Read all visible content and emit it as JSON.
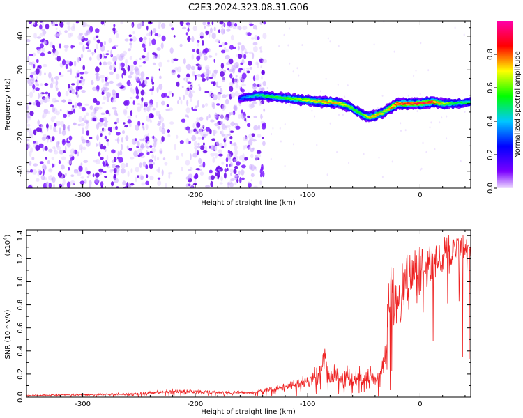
{
  "title": "C2E3.2024.323.08.31.G06",
  "chart_data": [
    {
      "type": "heatmap",
      "xlabel": "Height of straight line (km)",
      "ylabel": "Frequency (Hz)",
      "xlim": [
        -350,
        45
      ],
      "ylim": [
        -50,
        49
      ],
      "xticks": [
        -300,
        -200,
        -100,
        0
      ],
      "xtick_labels": [
        "-300",
        "-200",
        "-100",
        "0"
      ],
      "yticks": [
        -40,
        -20,
        0,
        20,
        40
      ],
      "ytick_labels": [
        "-40",
        "-20",
        "0",
        "20",
        "40"
      ],
      "colorbar": {
        "label": "Normalized spectral amplitude",
        "range": [
          0,
          1
        ],
        "ticks": [
          0.0,
          0.2,
          0.4,
          0.6,
          0.8
        ],
        "tick_labels": [
          "0.0",
          "0.2",
          "0.4",
          "0.6",
          "0.8"
        ],
        "colormap": [
          "#eedcff",
          "#7b00ff",
          "#0000ff",
          "#00c8ff",
          "#00ff00",
          "#ffff00",
          "#ff0000",
          "#ff00aa"
        ]
      },
      "noise_region": {
        "x_range": [
          -350,
          -150
        ],
        "amplitude_range": [
          0.0,
          0.1
        ]
      },
      "signal_trace": {
        "height_km": [
          -160,
          -145,
          -130,
          -115,
          -100,
          -90,
          -80,
          -70,
          -60,
          -55,
          -50,
          -45,
          -40,
          -35,
          -30,
          -25,
          -20,
          -10,
          0,
          10,
          20,
          30,
          45
        ],
        "frequency_hz": [
          3,
          5,
          4,
          3,
          2,
          1,
          1,
          0,
          -3,
          -5,
          -7,
          -8,
          -7,
          -6,
          -4,
          -2,
          0,
          0,
          0,
          1,
          0,
          0,
          1
        ],
        "amplitude": [
          0.3,
          0.5,
          0.55,
          0.6,
          0.7,
          0.75,
          0.8,
          0.7,
          0.6,
          0.55,
          0.6,
          0.75,
          0.8,
          0.75,
          0.7,
          0.8,
          0.85,
          0.9,
          0.95,
          0.9,
          0.7,
          0.55,
          0.5
        ]
      }
    },
    {
      "type": "line",
      "xlabel": "Height of straight line (km)",
      "ylabel": "SNR (10 * v/v)",
      "y_multiplier": "(x10",
      "y_multiplier_exp": "4",
      "y_multiplier_close": ")",
      "xlim": [
        -350,
        45
      ],
      "ylim": [
        0,
        1.45
      ],
      "xticks": [
        -300,
        -200,
        -100,
        0
      ],
      "xtick_labels": [
        "-300",
        "-200",
        "-100",
        "0"
      ],
      "yticks": [
        0.0,
        0.2,
        0.4,
        0.6,
        0.8,
        1.0,
        1.2,
        1.4
      ],
      "ytick_labels": [
        "0.0",
        "0.2",
        "0.4",
        "0.6",
        "0.8",
        "1.0",
        "1.2",
        "1.4"
      ],
      "series": [
        {
          "name": "SNR",
          "color": "#ee2222",
          "x": [
            -350,
            -300,
            -250,
            -220,
            -200,
            -150,
            -120,
            -100,
            -90,
            -85,
            -80,
            -75,
            -70,
            -65,
            -60,
            -55,
            -50,
            -45,
            -40,
            -35,
            -30,
            -28,
            -25,
            -20,
            -15,
            -10,
            -5,
            0,
            5,
            10,
            15,
            20,
            25,
            30,
            35,
            40,
            45
          ],
          "baseline": [
            0.01,
            0.015,
            0.02,
            0.04,
            0.03,
            0.03,
            0.06,
            0.08,
            0.12,
            0.25,
            0.13,
            0.12,
            0.11,
            0.1,
            0.1,
            0.11,
            0.1,
            0.12,
            0.1,
            0.15,
            0.25,
            0.45,
            0.55,
            0.6,
            0.65,
            0.75,
            0.78,
            0.85,
            0.9,
            0.98,
            1.05,
            1.1,
            1.12,
            1.15,
            1.18,
            1.2,
            1.22
          ],
          "peak": [
            0.02,
            0.03,
            0.04,
            0.07,
            0.06,
            0.05,
            0.12,
            0.2,
            0.3,
            0.47,
            0.25,
            0.3,
            0.2,
            0.28,
            0.2,
            0.35,
            0.22,
            0.3,
            0.18,
            0.3,
            0.5,
            1.15,
            1.18,
            1.0,
            1.2,
            1.25,
            1.3,
            1.32,
            1.32,
            1.35,
            1.38,
            1.4,
            1.42,
            1.43,
            1.43,
            1.43,
            1.43
          ]
        }
      ]
    }
  ]
}
